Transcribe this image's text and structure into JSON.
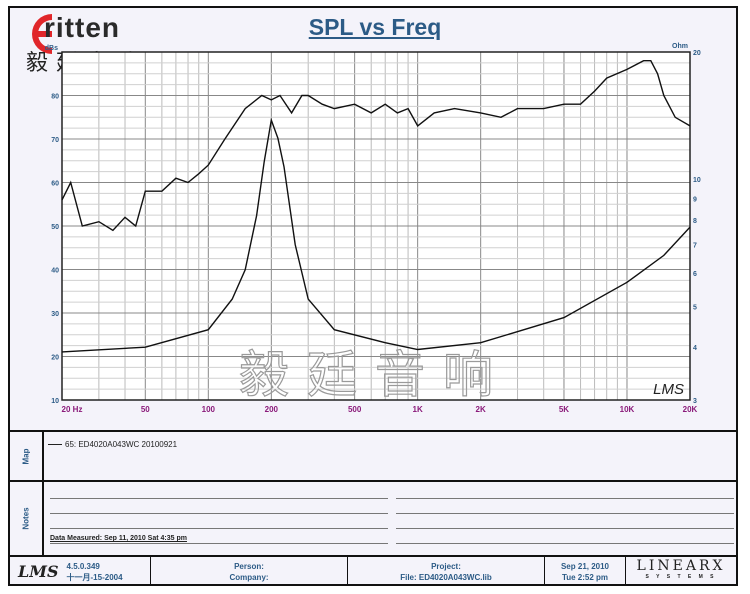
{
  "logo": {
    "brand": "ritten",
    "brand_initial": "E",
    "chinese": "毅廷音响"
  },
  "watermark": "毅廷音响",
  "chart_data": {
    "type": "line",
    "title": "SPL vs Freq",
    "xscale": "log",
    "xlim": [
      20,
      20000
    ],
    "x_ticks": [
      "20 Hz",
      "50",
      "100",
      "200",
      "500",
      "1K",
      "2K",
      "5K",
      "10K",
      "20K"
    ],
    "x_tick_values": [
      20,
      50,
      100,
      200,
      500,
      1000,
      2000,
      5000,
      10000,
      20000
    ],
    "ylabel_left": "dBs",
    "ylim_left": [
      10,
      90
    ],
    "y_ticks_left": [
      10,
      20,
      30,
      40,
      50,
      60,
      70,
      80
    ],
    "ylabel_right": "Ohm",
    "yscale_right": "log",
    "ylim_right": [
      3,
      20
    ],
    "y_ticks_right": [
      3,
      4,
      5,
      6,
      7,
      8,
      9,
      10,
      20
    ],
    "grid": true,
    "series": [
      {
        "axis": "left",
        "x": [
          20,
          22,
          25,
          30,
          35,
          40,
          45,
          50,
          60,
          70,
          80,
          90,
          100,
          120,
          150,
          180,
          200,
          220,
          250,
          280,
          300,
          350,
          400,
          500,
          600,
          700,
          800,
          900,
          1000,
          1200,
          1500,
          2000,
          2500,
          3000,
          4000,
          5000,
          6000,
          7000,
          8000,
          10000,
          12000,
          13000,
          14000,
          15000,
          17000,
          20000
        ],
        "y": [
          56,
          60,
          50,
          51,
          49,
          52,
          50,
          58,
          58,
          61,
          60,
          62,
          64,
          70,
          77,
          80,
          79,
          80,
          76,
          80,
          80,
          78,
          77,
          78,
          76,
          78,
          76,
          77,
          73,
          76,
          77,
          76,
          75,
          77,
          77,
          78,
          78,
          81,
          84,
          86,
          88,
          88,
          85,
          80,
          75,
          73
        ]
      },
      {
        "axis": "right",
        "x": [
          20,
          50,
          100,
          130,
          150,
          170,
          185,
          200,
          215,
          230,
          260,
          300,
          400,
          700,
          1000,
          2000,
          5000,
          10000,
          15000,
          20000
        ],
        "y": [
          3.9,
          4.0,
          4.4,
          5.2,
          6.1,
          8.2,
          11,
          13.8,
          12.5,
          10.7,
          7.0,
          5.2,
          4.4,
          4.1,
          3.95,
          4.1,
          4.7,
          5.7,
          6.6,
          7.7
        ]
      }
    ],
    "plot_logo": "LMS"
  },
  "map": {
    "label": "Map",
    "legend": "65: ED4020A043WC  20100921"
  },
  "notes": {
    "label": "Notes",
    "measured": "Data Measured: Sep 11, 2010  Sat  4:35 pm"
  },
  "footer": {
    "lms": "LMS",
    "version": "4.5.0.349",
    "build_date": "十一月-15-2004",
    "person": "Person:",
    "company": "Company:",
    "project": "Project:",
    "file": "File: ED4020A043WC.lib",
    "date": "Sep 21, 2010",
    "time": "Tue  2:52 pm",
    "brand": "LINEARX",
    "brand_sub": "S Y S T E M S"
  },
  "colors": {
    "axis_text_left": "#2c5b86",
    "axis_text_x": "#8a1a7a",
    "title": "#2c5b86",
    "logo_red": "#e0262a"
  }
}
